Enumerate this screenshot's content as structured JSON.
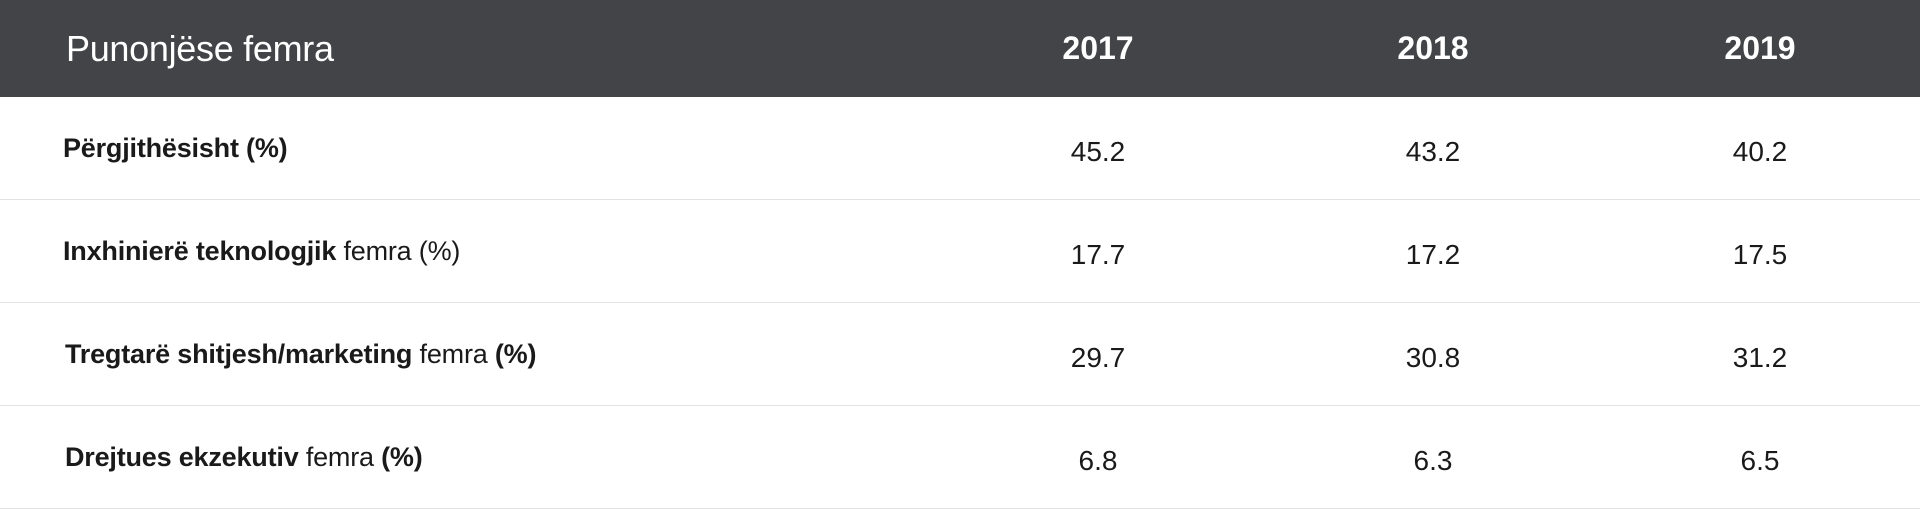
{
  "chart_data": {
    "type": "table",
    "header": {
      "label": "Punonjëse femra",
      "years": [
        "2017",
        "2018",
        "2019"
      ]
    },
    "rows": [
      {
        "label_parts": [
          {
            "text": "Përgjithësisht (%)",
            "bold": true
          }
        ],
        "values": [
          "45.2",
          "43.2",
          "40.2"
        ]
      },
      {
        "label_parts": [
          {
            "text": "Inxhinierë teknologjik",
            "bold": true
          },
          {
            "text": " femra (%)",
            "bold": false
          }
        ],
        "values": [
          "17.7",
          "17.2",
          "17.5"
        ]
      },
      {
        "label_parts": [
          {
            "text": "Tregtarë shitjesh/marketing",
            "bold": true
          },
          {
            "text": " femra ",
            "bold": false
          },
          {
            "text": "(%)",
            "bold": true
          }
        ],
        "values": [
          "29.7",
          "30.8",
          "31.2"
        ]
      },
      {
        "label_parts": [
          {
            "text": "Drejtues ekzekutiv",
            "bold": true
          },
          {
            "text": " femra ",
            "bold": false
          },
          {
            "text": "(%)",
            "bold": true
          }
        ],
        "values": [
          "6.8",
          "6.3",
          "6.5"
        ]
      }
    ]
  }
}
